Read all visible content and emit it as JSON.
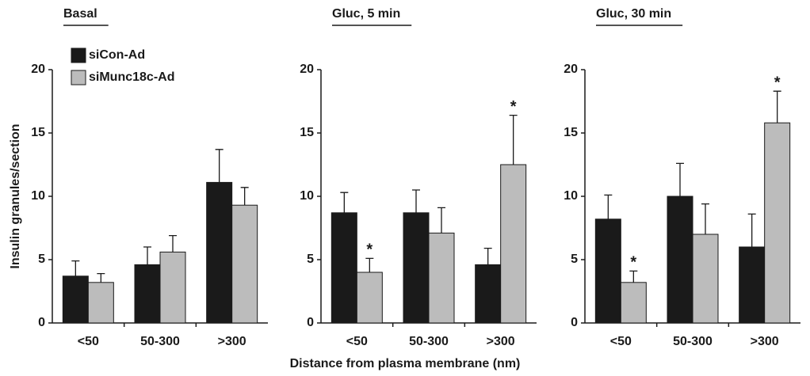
{
  "chart_data": [
    {
      "type": "bar",
      "title": "Basal",
      "ylabel": "Insulin granules/section",
      "categories": [
        "<50",
        "50-300",
        ">300"
      ],
      "series": [
        {
          "name": "siCon-Ad",
          "color": "#1a1a1a",
          "values": [
            3.7,
            4.6,
            11.1
          ],
          "errors": [
            1.2,
            1.4,
            2.6
          ]
        },
        {
          "name": "siMunc18c-Ad",
          "color": "#bcbcbc",
          "values": [
            3.2,
            5.6,
            9.3
          ],
          "errors": [
            0.7,
            1.3,
            1.4
          ]
        }
      ],
      "ylim": [
        0,
        20
      ],
      "yticks": [
        0,
        5,
        10,
        15,
        20
      ]
    },
    {
      "type": "bar",
      "title": "Gluc, 5 min",
      "xlabel": "Distance from plasma membrane (nm)",
      "categories": [
        "<50",
        "50-300",
        ">300"
      ],
      "series": [
        {
          "color": "#1a1a1a",
          "values": [
            8.7,
            8.7,
            4.6
          ],
          "errors": [
            1.6,
            1.8,
            1.3
          ]
        },
        {
          "color": "#bcbcbc",
          "values": [
            4.0,
            7.1,
            12.5
          ],
          "errors": [
            1.1,
            2.0,
            3.9
          ],
          "annotations": [
            "*",
            null,
            "*"
          ]
        }
      ],
      "ylim": [
        0,
        20
      ],
      "yticks": [
        0,
        5,
        10,
        15,
        20
      ]
    },
    {
      "type": "bar",
      "title": "Gluc, 30 min",
      "categories": [
        "<50",
        "50-300",
        ">300"
      ],
      "series": [
        {
          "color": "#1a1a1a",
          "values": [
            8.2,
            10.0,
            6.0
          ],
          "errors": [
            1.9,
            2.6,
            2.6
          ]
        },
        {
          "color": "#bcbcbc",
          "values": [
            3.2,
            7.0,
            15.8
          ],
          "errors": [
            0.9,
            2.4,
            2.5
          ],
          "annotations": [
            "*",
            null,
            "*"
          ]
        }
      ],
      "ylim": [
        0,
        20
      ],
      "yticks": [
        0,
        5,
        10,
        15,
        20
      ]
    }
  ]
}
